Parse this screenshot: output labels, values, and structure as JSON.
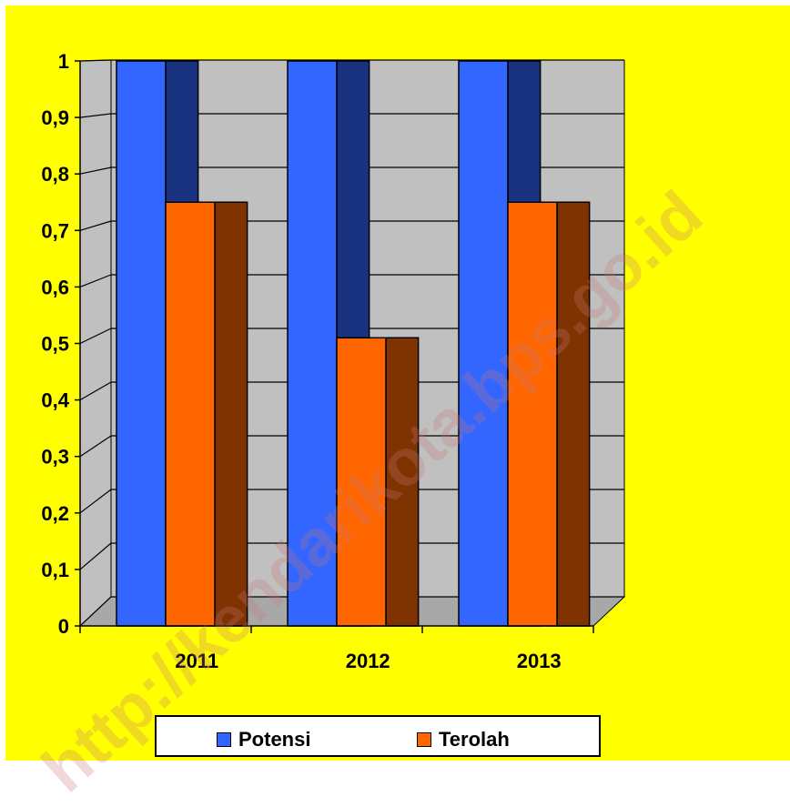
{
  "chart_data": {
    "type": "bar",
    "categories": [
      "2011",
      "2012",
      "2013"
    ],
    "series": [
      {
        "name": "Potensi",
        "values": [
          1,
          1,
          1
        ],
        "color": "#3366ff",
        "side_color": "#1a3380"
      },
      {
        "name": "Terolah",
        "values": [
          0.75,
          0.51,
          0.75
        ],
        "color": "#ff6600",
        "side_color": "#7f3300"
      }
    ],
    "yticks": [
      "0",
      "0,1",
      "0,2",
      "0,3",
      "0,4",
      "0,5",
      "0,6",
      "0,7",
      "0,8",
      "0,9",
      "1"
    ],
    "ylim": [
      0,
      1
    ],
    "grid": true,
    "legend_position": "bottom",
    "background_color": "#ffff00",
    "plot_area_color": "#c0c0c0",
    "title": "",
    "xlabel": "",
    "ylabel": ""
  },
  "watermark": "http://kendarikota.bps.go.id"
}
